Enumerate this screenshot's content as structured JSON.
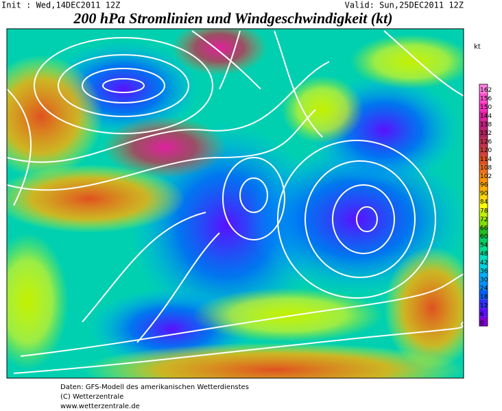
{
  "header": {
    "init": "Init : Wed,14DEC2011 12Z",
    "valid": "Valid: Sun,25DEC2011 12Z",
    "title": "200 hPa Stromlinien und Windgeschwindigkeit (kt)"
  },
  "legend": {
    "unit": "kt",
    "ticks": [
      0,
      6,
      12,
      18,
      24,
      30,
      36,
      42,
      48,
      54,
      60,
      66,
      72,
      78,
      84,
      90,
      96,
      102,
      108,
      114,
      120,
      126,
      132,
      138,
      144,
      150,
      156,
      162
    ],
    "colors": [
      "#8000d0",
      "#5a10ff",
      "#3030ff",
      "#0060ff",
      "#0090ff",
      "#00b0ff",
      "#00d0e0",
      "#00e0c0",
      "#00e090",
      "#00d060",
      "#20c020",
      "#80e000",
      "#c0f000",
      "#ffff00",
      "#ffd800",
      "#ffb000",
      "#ff9000",
      "#f07020",
      "#e05020",
      "#d04040",
      "#c03050",
      "#b02060",
      "#c02080",
      "#e020a0",
      "#ff30c0",
      "#ff50d0",
      "#ff80e0"
    ]
  },
  "footer": {
    "lines": [
      "Daten: GFS-Modell des amerikanischen Wetterdienstes",
      "(C) Wetterzentrale",
      "www.wetterzentrale.de"
    ]
  }
}
